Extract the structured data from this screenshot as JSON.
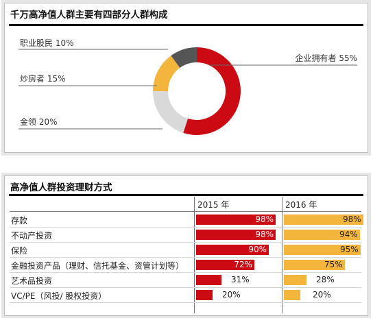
{
  "colors": {
    "red": "#cc0a14",
    "yellow": "#f4b53c",
    "gray_light": "#d9d9d9",
    "gray_dark": "#555555"
  },
  "donut_title": "千万高净值人群主要有四部分人群构成",
  "table_title": "高净值人群投资理财方式",
  "table_headers": {
    "y2015": "2015 年",
    "y2016": "2016 年"
  },
  "chart_data": [
    {
      "type": "pie",
      "title": "千万高净值人群主要有四部分人群构成",
      "slices": [
        {
          "label": "企业拥有者",
          "value": 55,
          "value_text": "55%",
          "color": "#cc0a14"
        },
        {
          "label": "金领",
          "value": 20,
          "value_text": "20%",
          "color": "#d9d9d9"
        },
        {
          "label": "炒房者",
          "value": 15,
          "value_text": "15%",
          "color": "#f4b53c"
        },
        {
          "label": "职业股民",
          "value": 10,
          "value_text": "10%",
          "color": "#555555"
        }
      ]
    },
    {
      "type": "bar",
      "title": "高净值人群投资理财方式",
      "categories": [
        "存款",
        "不动产投资",
        "保险",
        "金融投资产品（理财、信托基金、资管计划等）",
        "艺术品投资",
        "VC/PE（风投/ 股权投资）"
      ],
      "series": [
        {
          "name": "2015 年",
          "values": [
            98,
            98,
            90,
            72,
            31,
            20
          ],
          "labels": [
            "98%",
            "98%",
            "90%",
            "72%",
            "31%",
            "20%"
          ],
          "color": "#cc0a14"
        },
        {
          "name": "2016 年",
          "values": [
            98,
            94,
            95,
            75,
            28,
            20
          ],
          "labels": [
            "98%",
            "94%",
            "95%",
            "75%",
            "28%",
            "20%"
          ],
          "color": "#f4b53c"
        }
      ],
      "ylim": [
        0,
        100
      ]
    }
  ]
}
